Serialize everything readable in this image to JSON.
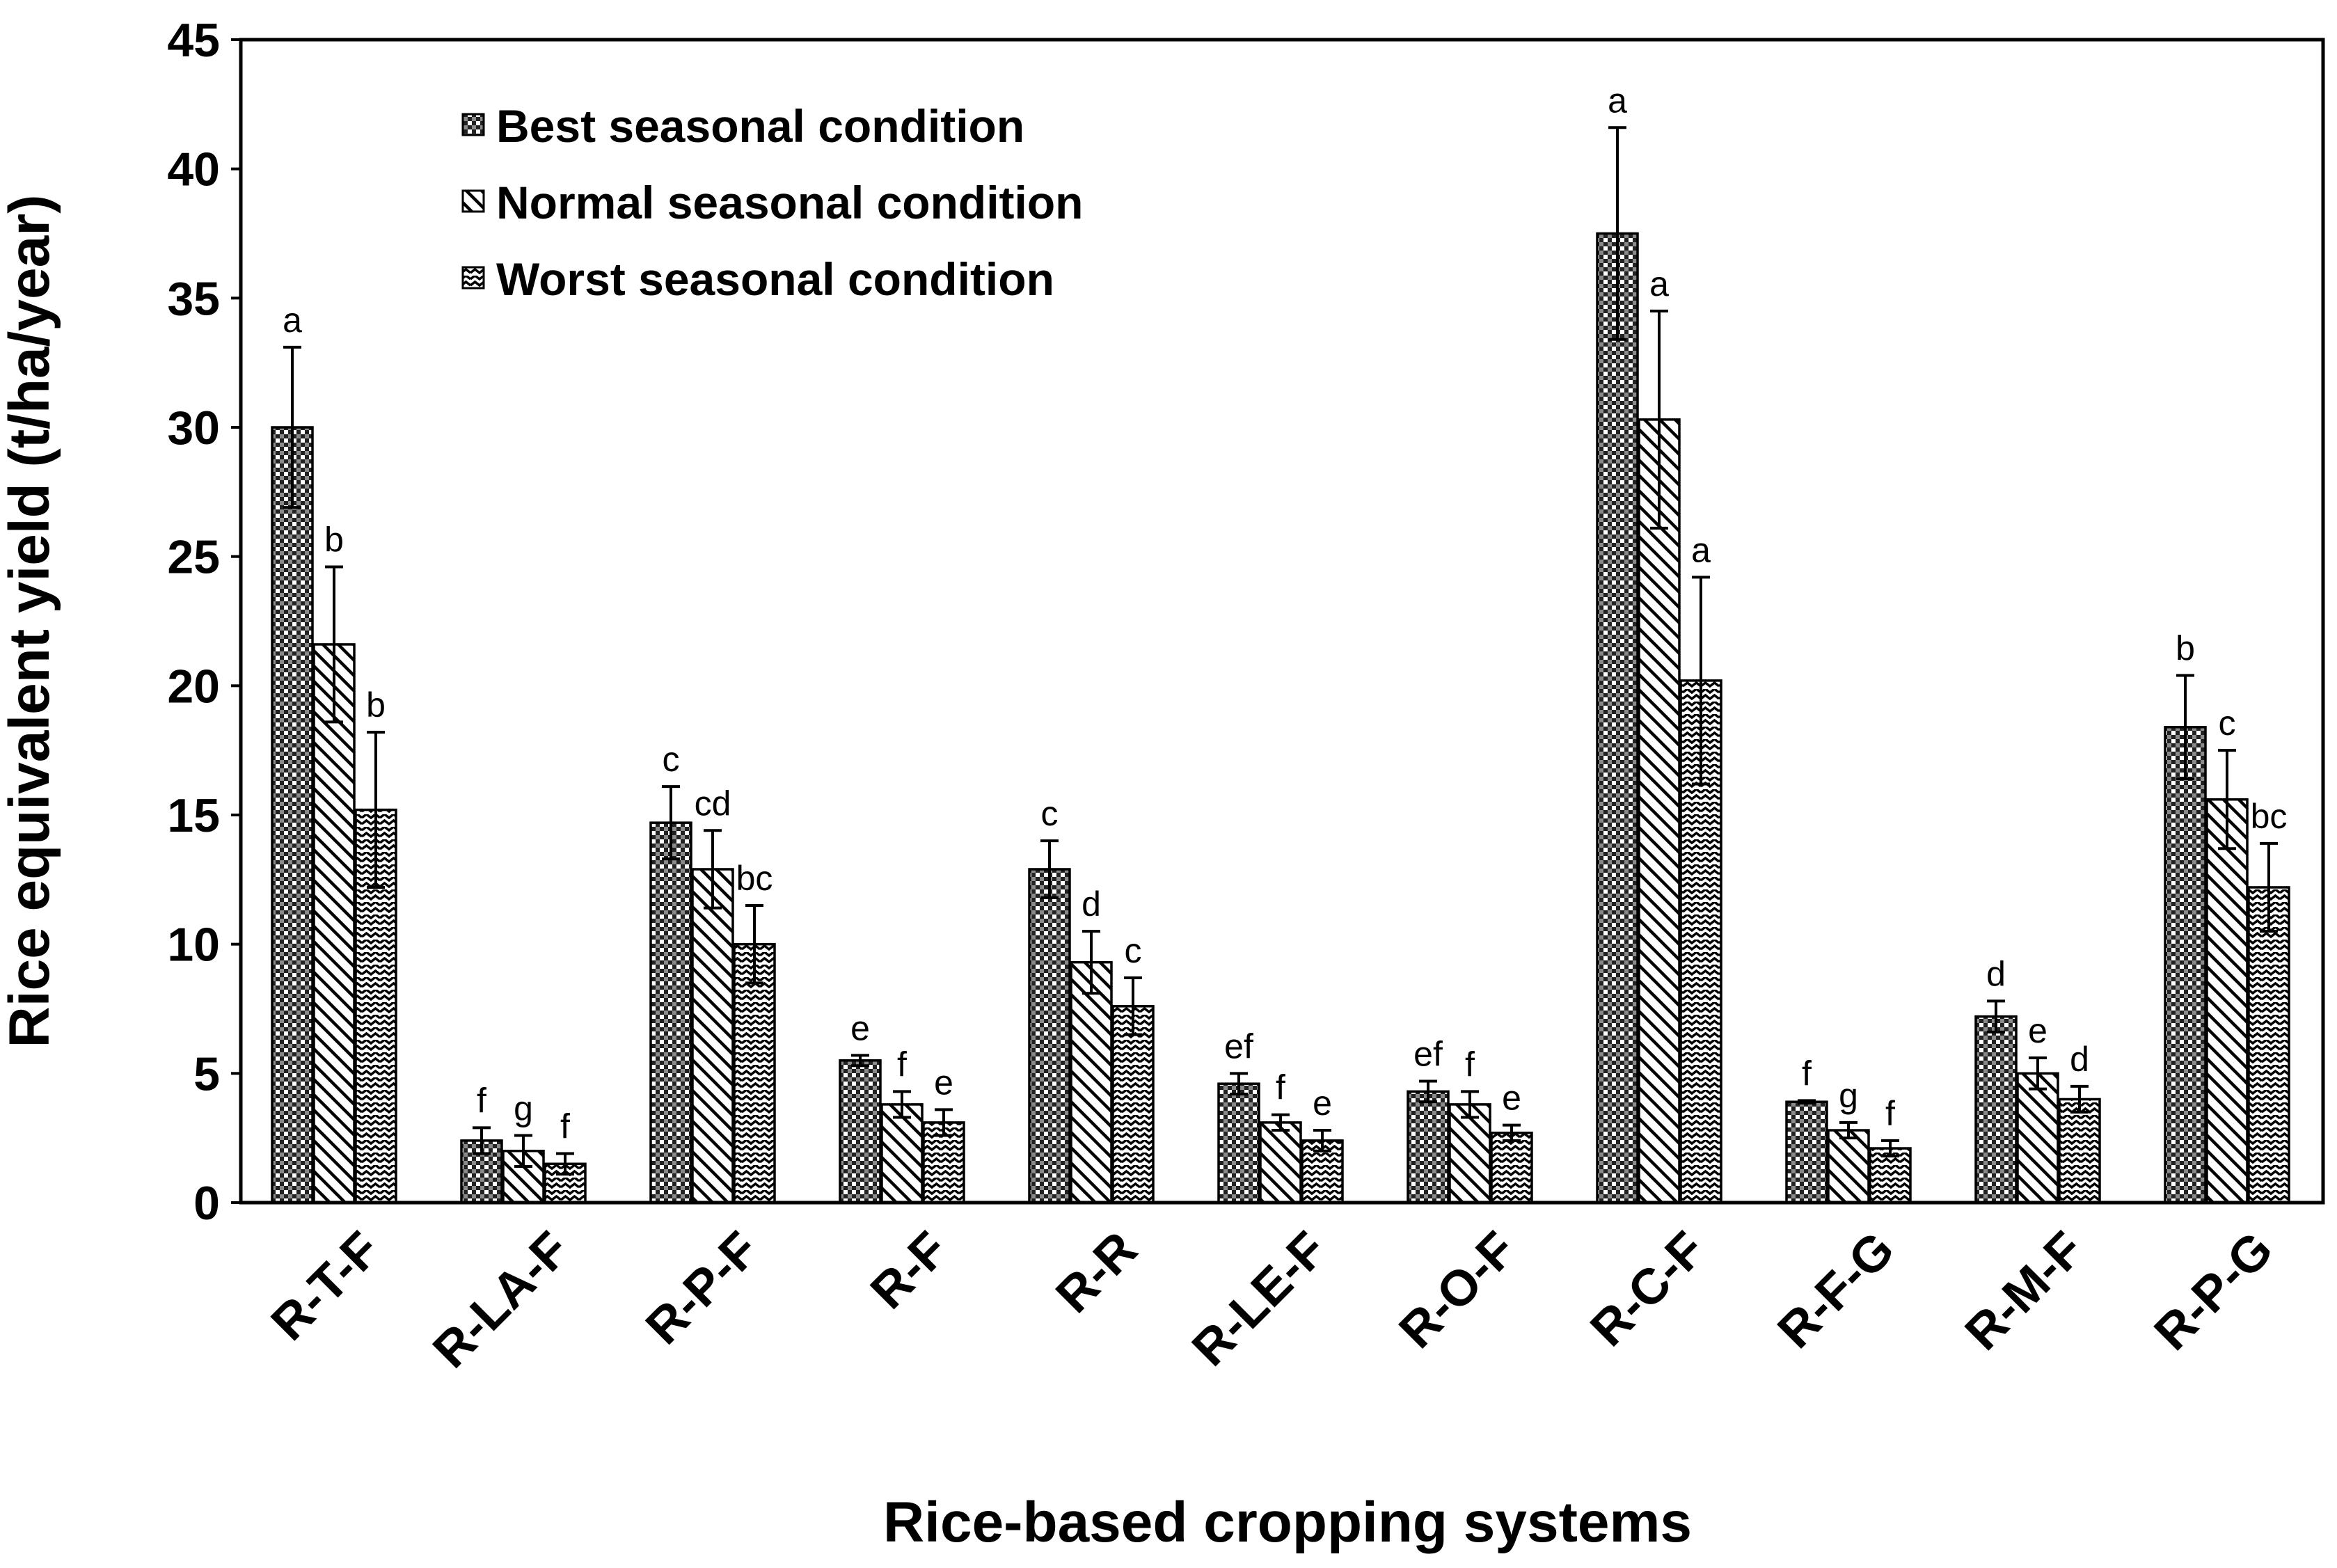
{
  "chart_data": {
    "type": "bar",
    "title": "",
    "xlabel": "Rice-based cropping systems",
    "ylabel": "Rice equivalent yield (t/ha/year)",
    "ylim": [
      0,
      45
    ],
    "yticks": [
      0,
      5,
      10,
      15,
      20,
      25,
      30,
      35,
      40,
      45
    ],
    "grid": false,
    "legend_position": "top-left",
    "categories": [
      "R-T-F",
      "R-LA-F",
      "R-P-F",
      "R-F",
      "R-R",
      "R-LE-F",
      "R-O-F",
      "R-C-F",
      "R-F-G",
      "R-M-F",
      "R-P-G"
    ],
    "series": [
      {
        "name": "Best seasonal condition",
        "pattern": "checker",
        "values": [
          30.0,
          2.4,
          14.7,
          5.5,
          12.9,
          4.6,
          4.3,
          37.5,
          3.9,
          7.2,
          18.4
        ],
        "errors": [
          3.1,
          0.5,
          1.4,
          0.2,
          1.1,
          0.4,
          0.4,
          4.1,
          0.05,
          0.6,
          2.0
        ],
        "letters": [
          "a",
          "f",
          "c",
          "e",
          "c",
          "ef",
          "ef",
          "a",
          "f",
          "d",
          "b"
        ]
      },
      {
        "name": "Normal seasonal condition",
        "pattern": "diagonal",
        "values": [
          21.6,
          2.0,
          12.9,
          3.8,
          9.3,
          3.1,
          3.8,
          30.3,
          2.8,
          5.0,
          15.6
        ],
        "errors": [
          3.0,
          0.6,
          1.5,
          0.5,
          1.2,
          0.3,
          0.5,
          4.2,
          0.3,
          0.6,
          1.9
        ],
        "letters": [
          "b",
          "g",
          "cd",
          "f",
          "d",
          "f",
          "f",
          "a",
          "g",
          "e",
          "c"
        ]
      },
      {
        "name": "Worst seasonal condition",
        "pattern": "wave",
        "values": [
          15.2,
          1.5,
          10.0,
          3.1,
          7.6,
          2.4,
          2.7,
          20.2,
          2.1,
          4.0,
          12.2
        ],
        "errors": [
          3.0,
          0.4,
          1.5,
          0.5,
          1.1,
          0.4,
          0.3,
          4.0,
          0.3,
          0.5,
          1.7
        ],
        "letters": [
          "b",
          "f",
          "bc",
          "e",
          "c",
          "e",
          "e",
          "a",
          "f",
          "d",
          "bc"
        ]
      }
    ]
  }
}
